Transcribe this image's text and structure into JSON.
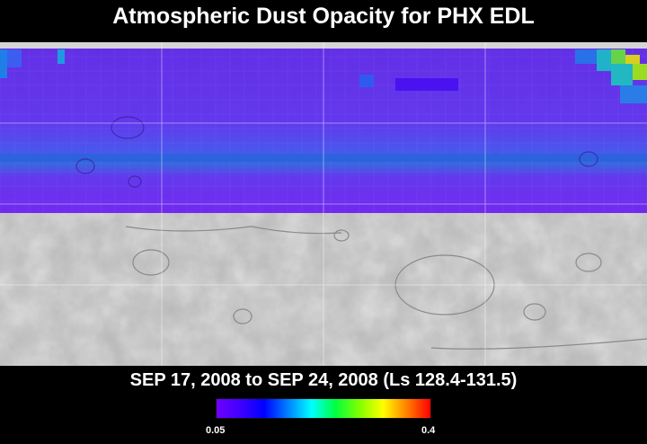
{
  "title": "Atmospheric Dust Opacity for PHX EDL",
  "subtitle": "SEP 17, 2008 to SEP 24, 2008 (Ls 128.4-131.5)",
  "colorbar": {
    "min_label": "0.05",
    "max_label": "0.4",
    "min_value": 0.05,
    "max_value": 0.4,
    "colors": [
      "#7000ff",
      "#4000ff",
      "#0000ff",
      "#0080ff",
      "#00ffff",
      "#00ff40",
      "#80ff00",
      "#ffff00",
      "#ff8000",
      "#ff0000"
    ]
  }
}
